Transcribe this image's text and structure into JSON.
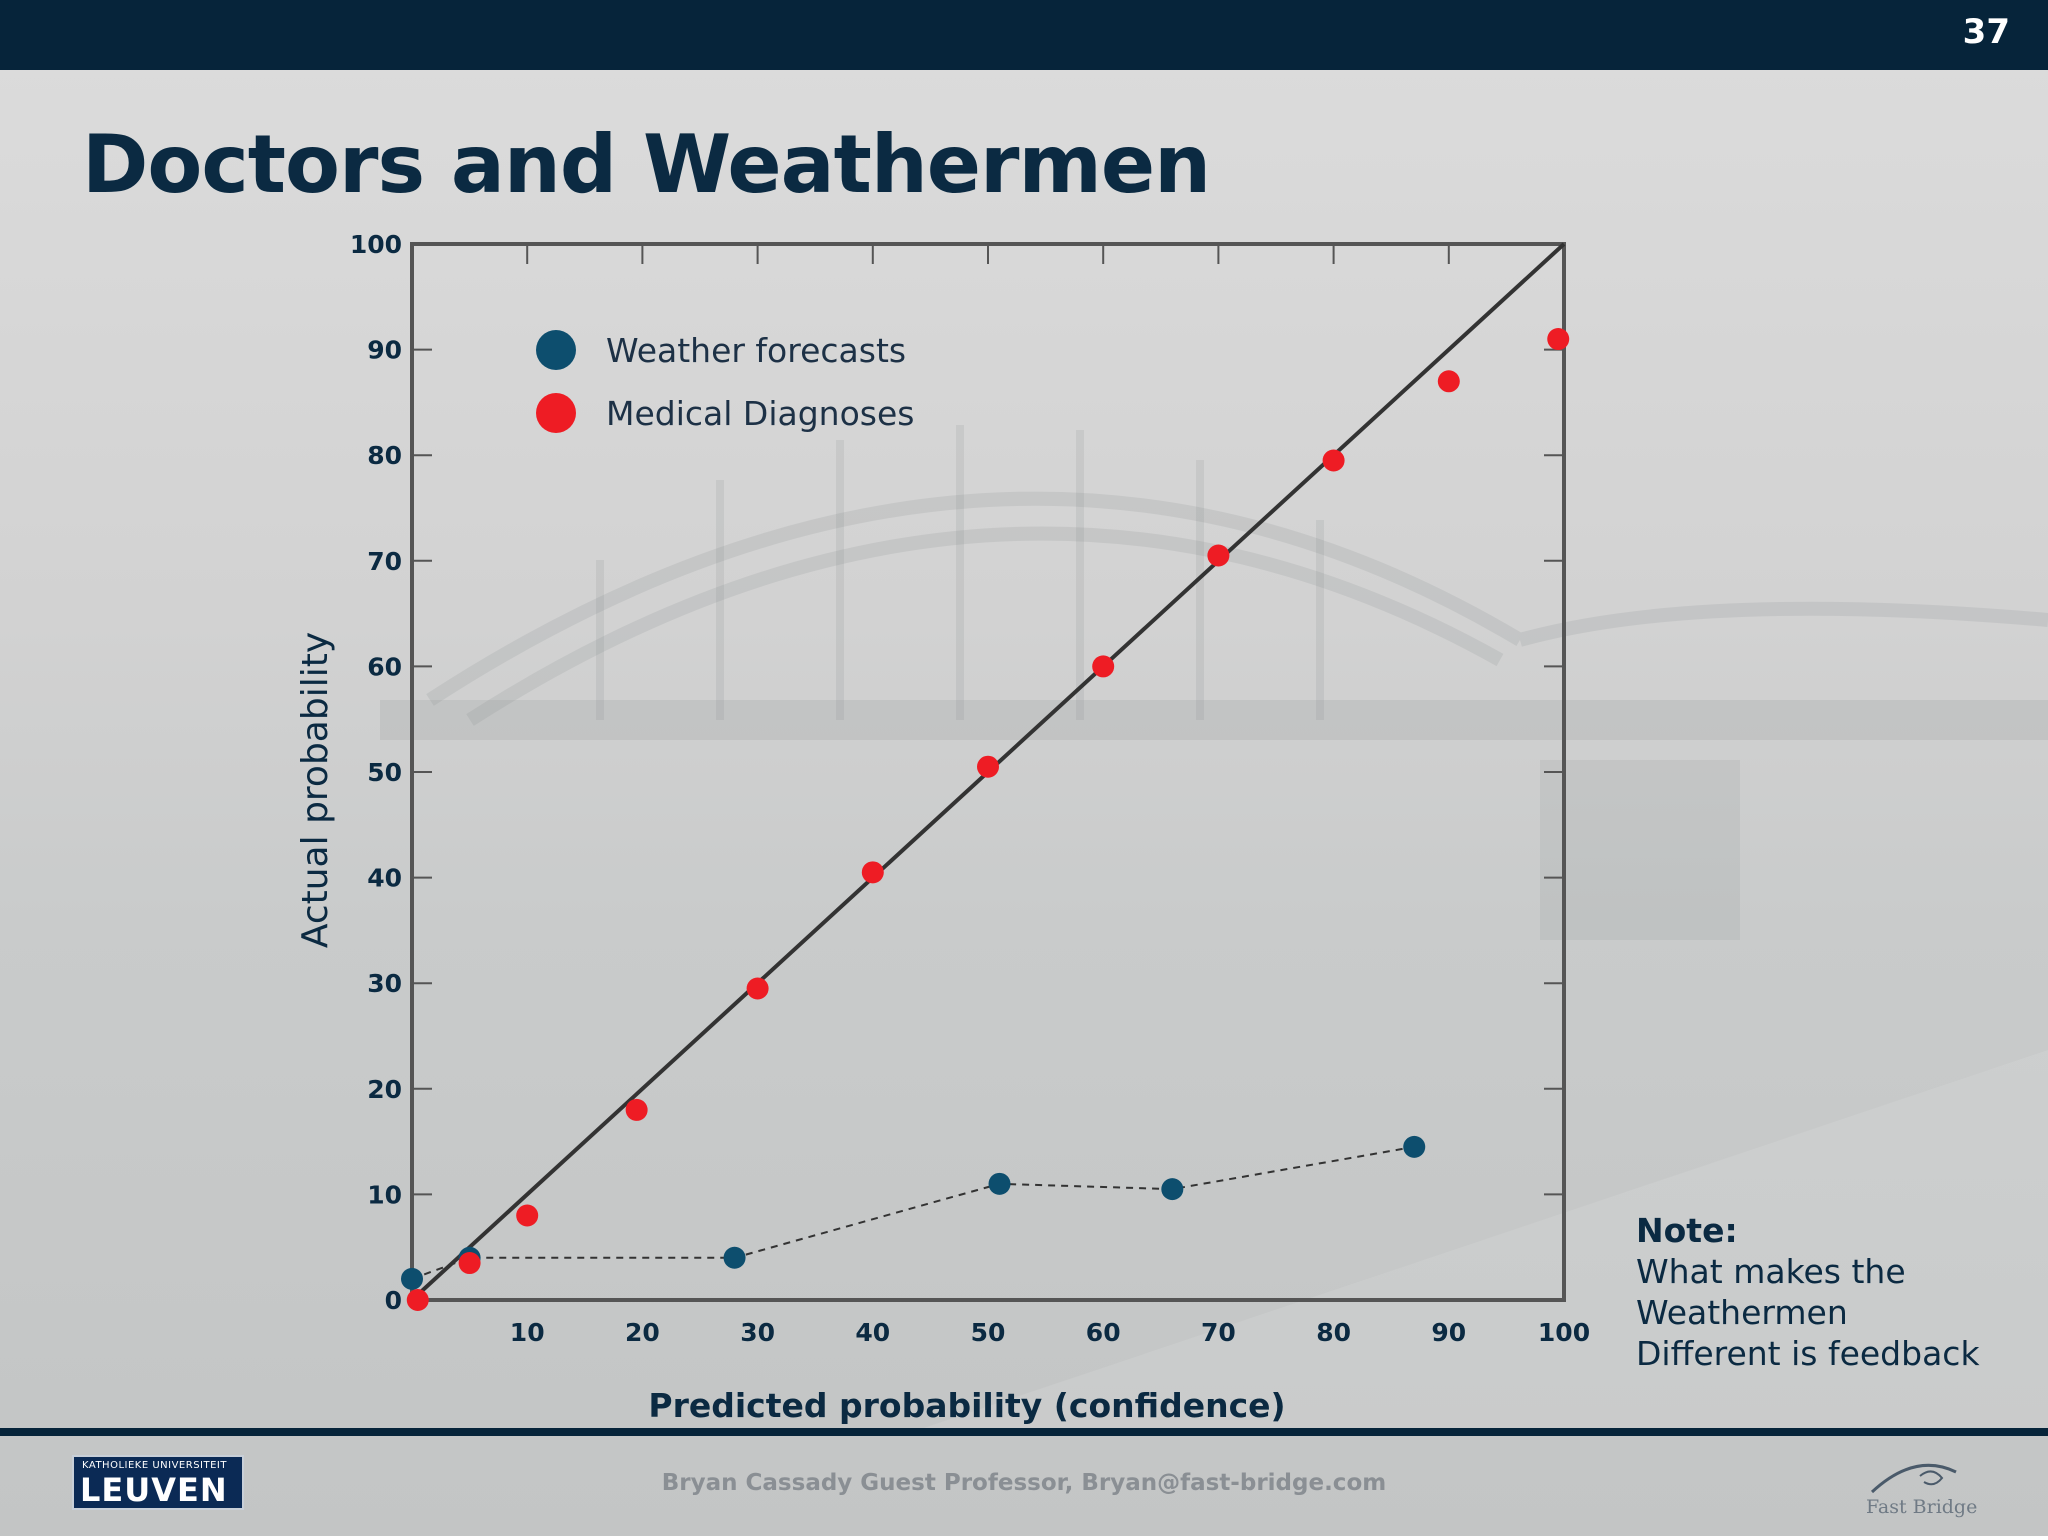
{
  "slide": {
    "number": "37",
    "title": "Doctors and Weathermen",
    "footer": "Bryan Cassady Guest Professor, Bryan@fast-bridge.com",
    "logo_small": "KATHOLIEKE UNIVERSITEIT",
    "logo_big": "LEUVEN",
    "brand_logo": "Fast Bridge"
  },
  "note": {
    "heading": "Note:",
    "lines": [
      "What makes the",
      "Weathermen",
      "Different is feedback"
    ]
  },
  "colors": {
    "weather": "#0d4e6e",
    "medical": "#ee1c24",
    "dark": "#06243a"
  },
  "chart_data": {
    "type": "scatter",
    "xlabel": "Predicted probability (confidence)",
    "ylabel": "Actual probability",
    "xlim": [
      0,
      100
    ],
    "ylim": [
      0,
      100
    ],
    "xticks": [
      "10",
      "20",
      "30",
      "40",
      "50",
      "60",
      "70",
      "80",
      "90",
      "100"
    ],
    "yticks": [
      "0",
      "10",
      "20",
      "30",
      "40",
      "50",
      "60",
      "70",
      "80",
      "90",
      "100"
    ],
    "reference_line": "diagonal y = x",
    "legend_position": "top-left",
    "series": [
      {
        "name": "Weather forecasts",
        "color": "#0d4e6e",
        "connected": "dashed",
        "x": [
          0,
          5,
          28,
          51,
          66,
          87
        ],
        "y": [
          2,
          4,
          4,
          11,
          10.5,
          14.5
        ]
      },
      {
        "name": "Medical Diagnoses",
        "color": "#ee1c24",
        "connected": "none",
        "x": [
          0.5,
          5,
          10,
          19.5,
          30,
          40,
          50,
          60,
          70,
          80,
          90,
          99.5
        ],
        "y": [
          0,
          3.5,
          8,
          18,
          29.5,
          40.5,
          50.5,
          60,
          70.5,
          79.5,
          87,
          91
        ]
      }
    ]
  }
}
